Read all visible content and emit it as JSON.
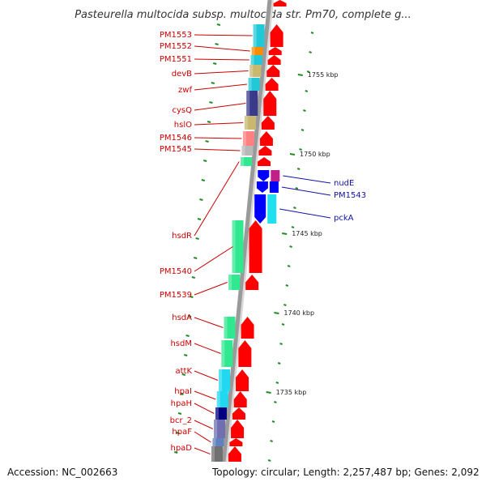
{
  "title": "Pasteurella multocida subsp. multocida str. Pm70, complete g...",
  "footer": {
    "accession": "Accession: NC_002663",
    "topology": "Topology: circular; Length: 2,257,487 bp; Genes: 2,092"
  },
  "scale_labels": [
    "1755 kbp",
    "1750 kbp",
    "1745 kbp",
    "1740 kbp",
    "1735 kbp"
  ],
  "genes_left": [
    {
      "name": "PM1553",
      "color": "#20c8d8"
    },
    {
      "name": "PM1552",
      "color": "#ff8c00"
    },
    {
      "name": "PM1551",
      "color": "#20c8d8"
    },
    {
      "name": "devB",
      "color": "#c8b870"
    },
    {
      "name": "zwf",
      "color": "#20c8d8"
    },
    {
      "name": "cysQ",
      "color": "#3a3a8a"
    },
    {
      "name": "hslO",
      "color": "#c8b870"
    },
    {
      "name": "PM1546",
      "color": "#ff8080"
    },
    {
      "name": "PM1545",
      "color": "#b8b8b8"
    },
    {
      "name": "hsdR",
      "color": "#30e890"
    },
    {
      "name": "PM1540",
      "color": "#30e890"
    },
    {
      "name": "PM1539",
      "color": "#30e890"
    },
    {
      "name": "hsdA",
      "color": "#30e890"
    },
    {
      "name": "hsdM",
      "color": "#30e890"
    },
    {
      "name": "attK",
      "color": "#20d8f0"
    },
    {
      "name": "hpaI",
      "color": "#20d8f0"
    },
    {
      "name": "hpaH",
      "color": "#000080"
    },
    {
      "name": "bcr_2",
      "color": "#7070b0"
    },
    {
      "name": "hpaF",
      "color": "#6080c0"
    },
    {
      "name": "hpaD",
      "color": "#707070"
    }
  ],
  "genes_right": [
    {
      "name": "nudE",
      "color": "#c0208a"
    },
    {
      "name": "PM1543",
      "color": "#0000ff"
    },
    {
      "name": "pckA",
      "color": "#20e0f0"
    }
  ],
  "colors": {
    "forward_strand": "#ff0000",
    "reverse_strand": "#0000ff",
    "backbone": "#9a9a9a",
    "ticks": "#228b22",
    "left_label": "#cc0000",
    "right_label": "#1010aa"
  }
}
